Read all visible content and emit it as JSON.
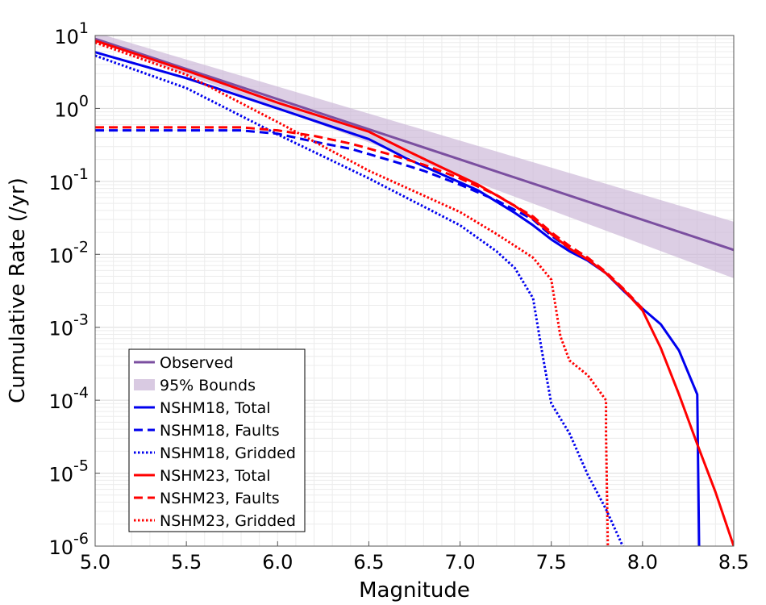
{
  "chart_data": {
    "type": "line",
    "title": "",
    "xlabel": "Magnitude",
    "ylabel": "Cumulative Rate (/yr)",
    "xlim": [
      5.0,
      8.5
    ],
    "ylim": [
      1e-06,
      10
    ],
    "yscale": "log",
    "grid": true,
    "legend_position": "bottom-left",
    "x_ticks": [
      "5.0",
      "5.5",
      "6.0",
      "6.5",
      "7.0",
      "7.5",
      "8.0",
      "8.5"
    ],
    "y_tick_base": "10",
    "y_tick_exponents": [
      "1",
      "0",
      "-1",
      "-2",
      "-3",
      "-4",
      "-5",
      "-6"
    ],
    "band": {
      "name": "95% Bounds",
      "color": "#c9b3d6",
      "x": [
        5.0,
        8.5
      ],
      "lower": [
        8.5,
        0.0047
      ],
      "upper": [
        11.0,
        0.028
      ]
    },
    "series": [
      {
        "name": "Observed",
        "color": "#7b4fa0",
        "style": "solid",
        "x": [
          5.0,
          8.5
        ],
        "y": [
          9.0,
          0.0115
        ]
      },
      {
        "name": "NSHM18, Total",
        "color": "#0000ee",
        "style": "solid",
        "x": [
          5.0,
          5.5,
          6.0,
          6.5,
          6.7,
          6.9,
          7.1,
          7.3,
          7.4,
          7.5,
          7.6,
          7.7,
          7.8,
          7.9,
          8.0,
          8.1,
          8.2,
          8.3,
          8.31
        ],
        "y": [
          5.9,
          2.6,
          1.0,
          0.38,
          0.21,
          0.125,
          0.075,
          0.037,
          0.025,
          0.016,
          0.011,
          0.0082,
          0.0055,
          0.0031,
          0.0018,
          0.0011,
          0.00048,
          0.00012,
          1e-06
        ]
      },
      {
        "name": "NSHM18, Faults",
        "color": "#0000ee",
        "style": "dashed",
        "x": [
          5.0,
          5.5,
          5.8,
          6.0,
          6.2,
          6.4,
          6.6,
          6.8,
          7.0,
          7.2,
          7.4,
          7.5,
          7.6,
          7.7,
          7.8,
          7.9,
          8.0
        ],
        "y": [
          0.5,
          0.5,
          0.5,
          0.45,
          0.35,
          0.28,
          0.2,
          0.14,
          0.09,
          0.055,
          0.03,
          0.018,
          0.012,
          0.0085,
          0.0055,
          0.0031,
          0.0018
        ]
      },
      {
        "name": "NSHM18, Gridded",
        "color": "#0000ee",
        "style": "dotted",
        "x": [
          5.0,
          5.5,
          6.0,
          6.5,
          7.0,
          7.2,
          7.3,
          7.4,
          7.45,
          7.5,
          7.6,
          7.7,
          7.8,
          7.9,
          7.91
        ],
        "y": [
          5.3,
          1.9,
          0.44,
          0.11,
          0.025,
          0.011,
          0.0065,
          0.0025,
          0.00045,
          9e-05,
          3.5e-05,
          9.5e-06,
          3.2e-06,
          9e-07,
          1e-06
        ]
      },
      {
        "name": "NSHM23, Total",
        "color": "#ff0000",
        "style": "solid",
        "x": [
          5.0,
          5.5,
          6.0,
          6.5,
          6.7,
          6.9,
          7.1,
          7.3,
          7.4,
          7.5,
          7.6,
          7.7,
          7.8,
          7.9,
          8.0,
          8.1,
          8.2,
          8.3,
          8.4,
          8.5
        ],
        "y": [
          8.5,
          3.3,
          1.2,
          0.48,
          0.27,
          0.155,
          0.09,
          0.046,
          0.031,
          0.019,
          0.012,
          0.0085,
          0.0055,
          0.0032,
          0.0017,
          0.00052,
          0.00012,
          2.5e-05,
          5.5e-06,
          1e-06
        ]
      },
      {
        "name": "NSHM23, Faults",
        "color": "#ff0000",
        "style": "dashed",
        "x": [
          5.0,
          5.5,
          5.8,
          6.0,
          6.2,
          6.4,
          6.6,
          6.8,
          7.0,
          7.2,
          7.4,
          7.5,
          7.6,
          7.7,
          7.8,
          7.9,
          8.0
        ],
        "y": [
          0.55,
          0.55,
          0.55,
          0.5,
          0.42,
          0.33,
          0.24,
          0.17,
          0.11,
          0.065,
          0.033,
          0.02,
          0.013,
          0.009,
          0.0057,
          0.0033,
          0.0018
        ]
      },
      {
        "name": "NSHM23, Gridded",
        "color": "#ff0000",
        "style": "dotted",
        "x": [
          5.0,
          5.5,
          6.0,
          6.5,
          7.0,
          7.2,
          7.4,
          7.5,
          7.55,
          7.6,
          7.7,
          7.8,
          7.8,
          7.81
        ],
        "y": [
          8.0,
          2.9,
          0.65,
          0.14,
          0.038,
          0.019,
          0.009,
          0.0045,
          0.00075,
          0.00035,
          0.00022,
          0.0001,
          3.5e-05,
          1e-06
        ]
      }
    ]
  }
}
